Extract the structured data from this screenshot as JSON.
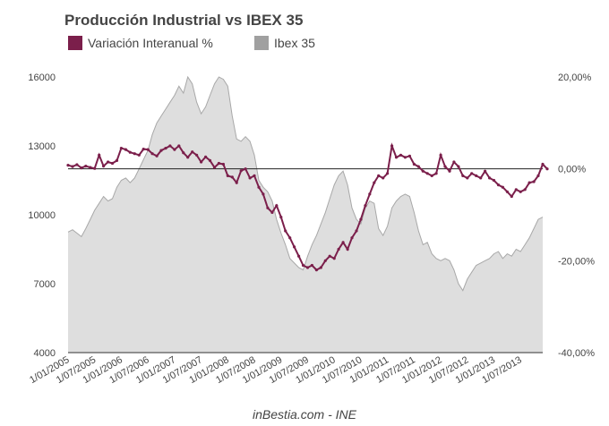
{
  "chart_data": {
    "type": "line",
    "title": "Producción Industrial vs IBEX 35",
    "source": "inBestia.com - INE",
    "legend_position": "top-left",
    "colors": {
      "variacion": "#7b1f4b",
      "ibex_fill": "#dedede",
      "ibex_stroke": "#a8a8a8",
      "ibex_legend": "#a0a0a0"
    },
    "legend": [
      {
        "key": "variacion",
        "label": "Variación Interanual %"
      },
      {
        "key": "ibex",
        "label": "Ibex 35"
      }
    ],
    "left_axis": {
      "ylim": [
        4000,
        16000
      ],
      "ticks": [
        "16000",
        "13000",
        "10000",
        "7000",
        "4000"
      ],
      "tick_values": [
        16000,
        13000,
        10000,
        7000,
        4000
      ]
    },
    "right_axis": {
      "ylim": [
        -40,
        20
      ],
      "ticks": [
        "20,00%",
        "0,00%",
        "-20,00%",
        "-40,00%"
      ],
      "tick_values": [
        20,
        0,
        -20,
        -40
      ]
    },
    "x_ticks": [
      "1/01/2005",
      "1/07/2005",
      "1/01/2006",
      "1/07/2006",
      "1/01/2007",
      "1/07/2007",
      "1/01/2008",
      "1/07/2008",
      "1/01/2009",
      "1/07/2009",
      "1/01/2010",
      "1/07/2010",
      "1/01/2011",
      "1/07/2011",
      "1/01/2012",
      "1/07/2012",
      "1/01/2013",
      "1/07/2013"
    ],
    "x_range_months": [
      0,
      107
    ],
    "ibex": [
      9250,
      9350,
      9200,
      9050,
      9400,
      9800,
      10200,
      10500,
      10800,
      10600,
      10700,
      11200,
      11500,
      11600,
      11400,
      11600,
      12000,
      12400,
      12800,
      13500,
      14000,
      14300,
      14600,
      14900,
      15200,
      15600,
      15300,
      16000,
      15700,
      14900,
      14400,
      14700,
      15200,
      15700,
      16000,
      15900,
      15600,
      14300,
      13300,
      13200,
      13400,
      13200,
      12600,
      11500,
      11200,
      11000,
      10600,
      9800,
      9200,
      8700,
      8100,
      7900,
      7700,
      7600,
      8200,
      8700,
      9100,
      9600,
      10100,
      10700,
      11300,
      11700,
      11900,
      11300,
      10300,
      9800,
      9600,
      10300,
      10600,
      10500,
      9400,
      9100,
      9500,
      10300,
      10600,
      10800,
      10900,
      10800,
      10100,
      9300,
      8700,
      8800,
      8300,
      8100,
      8000,
      8100,
      8000,
      7600,
      7000,
      6700,
      7200,
      7500,
      7800,
      7900,
      8000,
      8100,
      8300,
      8400,
      8100,
      8300,
      8200,
      8500,
      8400,
      8700,
      9000,
      9400,
      9800,
      9900
    ],
    "variacion": [
      0.8,
      0.5,
      0.9,
      0.2,
      0.6,
      0.3,
      0.1,
      3.0,
      0.6,
      1.5,
      1.2,
      1.8,
      4.5,
      4.2,
      3.6,
      3.3,
      3.0,
      4.3,
      4.2,
      3.3,
      2.8,
      4.0,
      4.5,
      5.0,
      4.2,
      5.0,
      3.5,
      2.5,
      3.7,
      3.0,
      1.5,
      2.6,
      1.8,
      0.3,
      1.2,
      1.0,
      -1.5,
      -1.8,
      -3.0,
      -0.4,
      0.0,
      -2.0,
      -1.5,
      -4.0,
      -5.5,
      -8.5,
      -9.5,
      -8.0,
      -10.5,
      -13.5,
      -15.0,
      -17.0,
      -19.0,
      -21.0,
      -21.5,
      -21.0,
      -22.0,
      -21.5,
      -20.0,
      -19.0,
      -19.5,
      -17.5,
      -16.0,
      -17.5,
      -15.0,
      -13.5,
      -11.0,
      -8.0,
      -5.5,
      -3.0,
      -1.5,
      -2.0,
      -1.0,
      5.0,
      2.5,
      3.0,
      2.5,
      2.8,
      1.0,
      0.5,
      -0.5,
      -1.0,
      -1.5,
      -1.0,
      3.0,
      0.5,
      -0.5,
      1.5,
      0.5,
      -1.5,
      -2.0,
      -1.0,
      -1.5,
      -2.0,
      -0.5,
      -2.0,
      -2.5,
      -3.5,
      -4.0,
      -5.0,
      -6.0,
      -4.5,
      -5.0,
      -4.5,
      -3.0,
      -2.8,
      -1.5,
      1.0,
      0.0
    ]
  }
}
